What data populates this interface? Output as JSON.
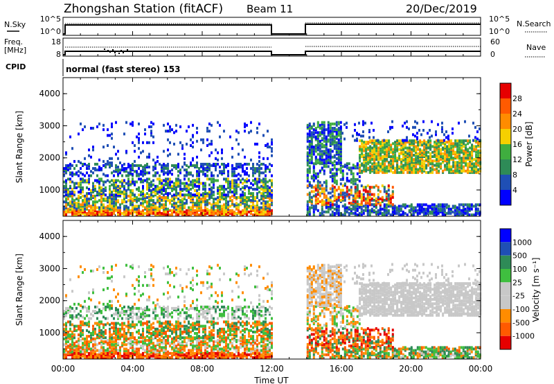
{
  "header": {
    "title": "Zhongshan Station (fitACF)",
    "beam": "Beam 11",
    "date": "20/Dec/2019"
  },
  "top_panels": {
    "nsky": {
      "label": "N.Sky",
      "right_label": "N.Search",
      "left_ticks": [
        "10^5",
        "10^0"
      ],
      "right_ticks": [
        "10^5",
        "10^0"
      ]
    },
    "freq": {
      "label_line1": "Freq.",
      "label_line2": "[MHz]",
      "right_label": "Nave",
      "left_ticks": [
        "18",
        "8"
      ],
      "right_ticks": [
        "60",
        "0"
      ]
    },
    "cpid": {
      "label": "CPID",
      "text": "normal (fast stereo) 153"
    }
  },
  "colors": {
    "power_scale": [
      "#0000ff",
      "#1f4fb5",
      "#2e8b57",
      "#3fae3f",
      "#f5d000",
      "#ff8c00",
      "#ff5a00",
      "#e60000"
    ],
    "velocity_scale": [
      "#e60000",
      "#ff5a00",
      "#ff8c00",
      "#c8c8c8",
      "#c8c8c8",
      "#3fbf3f",
      "#2e8b57",
      "#1f4fb5",
      "#0000ff"
    ]
  },
  "chart_data": [
    {
      "type": "heatmap",
      "name": "power",
      "ylabel": "Slant Range [km]",
      "xlabel": "",
      "yticks": [
        "1000",
        "2000",
        "3000",
        "4000"
      ],
      "ylim": [
        180,
        4500
      ],
      "xlim_hours": [
        0,
        24
      ],
      "colorbar_label": "Power [dB]",
      "colorbar_ticks": [
        "4",
        "8",
        "12",
        "16",
        "20",
        "24",
        "28"
      ],
      "data_gap_hours": [
        12,
        14
      ]
    },
    {
      "type": "heatmap",
      "name": "velocity",
      "ylabel": "Slant Range [km]",
      "xlabel": "Time UT",
      "yticks": [
        "1000",
        "2000",
        "3000",
        "4000"
      ],
      "xticks": [
        "00:00",
        "04:00",
        "08:00",
        "12:00",
        "16:00",
        "20:00",
        "00:00"
      ],
      "ylim": [
        180,
        4500
      ],
      "xlim_hours": [
        0,
        24
      ],
      "colorbar_label": "Velocity [m s⁻¹]",
      "colorbar_ticks": [
        "1000",
        "500",
        "100",
        "25",
        "-25",
        "-100",
        "-500",
        "-1000"
      ],
      "data_gap_hours": [
        12,
        14
      ]
    }
  ]
}
